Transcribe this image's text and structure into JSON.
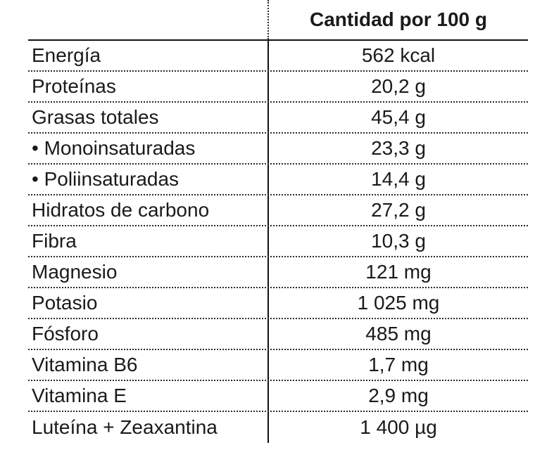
{
  "chart_data": {
    "type": "table",
    "title": "",
    "column_headers": [
      "",
      "Cantidad por 100 g"
    ],
    "rows": [
      {
        "label": "Energía",
        "value": "562 kcal"
      },
      {
        "label": "Proteínas",
        "value": "20,2 g"
      },
      {
        "label": "Grasas totales",
        "value": "45,4 g"
      },
      {
        "label": "• Monoinsaturadas",
        "value": "23,3 g"
      },
      {
        "label": "• Poliinsaturadas",
        "value": "14,4 g"
      },
      {
        "label": "Hidratos de carbono",
        "value": "27,2 g"
      },
      {
        "label": "Fibra",
        "value": "10,3 g"
      },
      {
        "label": "Magnesio",
        "value": "121 mg"
      },
      {
        "label": "Potasio",
        "value": "1 025 mg"
      },
      {
        "label": "Fósforo",
        "value": "485 mg"
      },
      {
        "label": "Vitamina B6",
        "value": "1,7 mg"
      },
      {
        "label": "Vitamina E",
        "value": "2,9 mg"
      },
      {
        "label": "Luteína + Zeaxantina",
        "value": "1 400 µg"
      }
    ],
    "layout": {
      "grid": "dotted row separators, solid line under header, vertical column divider",
      "value_column_alignment": "center",
      "label_column_alignment": "left"
    }
  },
  "colors": {
    "text": "#1a1a1a",
    "line": "#111111",
    "background": "#ffffff"
  }
}
